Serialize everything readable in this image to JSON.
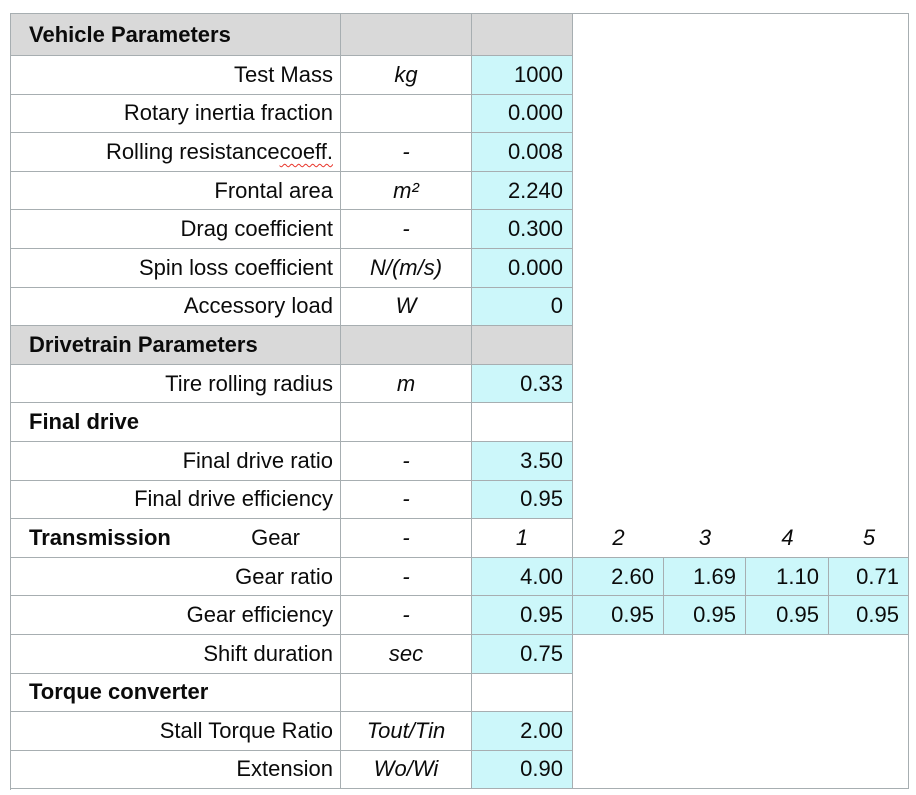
{
  "sheet_title": "Vehicle Parameters",
  "colors": {
    "section_header_bg": "#d9d9d9",
    "input_cell_bg": "#ccf7fa",
    "grid_line": "#a7aeb1",
    "spellcheck_underline": "#e8352b",
    "text": "#000000"
  },
  "table": {
    "columns": [
      "parameter",
      "unit",
      "value",
      "gear2",
      "gear3",
      "gear4",
      "gear5"
    ],
    "rows": [
      {
        "kind": "section",
        "label": "Vehicle Parameters"
      },
      {
        "kind": "data",
        "label": "Test Mass",
        "unit": "kg",
        "value": "1000",
        "fill": true
      },
      {
        "kind": "data",
        "label": "Rotary inertia fraction",
        "unit": "",
        "value": "0.000",
        "fill": true
      },
      {
        "kind": "data",
        "label": "Rolling resistance coeff.",
        "label_prefix": "Rolling resistance ",
        "label_squiggle": "coeff.",
        "unit": "-",
        "value": "0.008",
        "fill": true
      },
      {
        "kind": "data",
        "label": "Frontal area",
        "unit": "m²",
        "value": "2.240",
        "fill": true
      },
      {
        "kind": "data",
        "label": "Drag coefficient",
        "unit": "-",
        "value": "0.300",
        "fill": true
      },
      {
        "kind": "data",
        "label": "Spin loss coefficient",
        "unit": "N/(m/s)",
        "value": "0.000",
        "fill": true
      },
      {
        "kind": "data",
        "label": "Accessory load",
        "unit": "W",
        "value": "0",
        "fill": true
      },
      {
        "kind": "section",
        "label": "Drivetrain Parameters"
      },
      {
        "kind": "data",
        "label": "Tire rolling radius",
        "unit": "m",
        "value": "0.33",
        "fill": true
      },
      {
        "kind": "sub",
        "label": "Final drive"
      },
      {
        "kind": "data",
        "label": "Final drive ratio",
        "unit": "-",
        "value": "3.50",
        "fill": true
      },
      {
        "kind": "data",
        "label": "Final drive efficiency",
        "unit": "-",
        "value": "0.95",
        "fill": true
      },
      {
        "kind": "trans",
        "label_bold": "Transmission",
        "label": "Gear",
        "unit": "-",
        "value": "1",
        "gear_headers": [
          "2",
          "3",
          "4",
          "5"
        ]
      },
      {
        "kind": "data",
        "label": "Gear ratio",
        "unit": "-",
        "value": "4.00",
        "gears": [
          "2.60",
          "1.69",
          "1.10",
          "0.71"
        ],
        "fill": true
      },
      {
        "kind": "data",
        "label": "Gear efficiency",
        "unit": "-",
        "value": "0.95",
        "gears": [
          "0.95",
          "0.95",
          "0.95",
          "0.95"
        ],
        "fill": true
      },
      {
        "kind": "data",
        "label": "Shift duration",
        "unit": "sec",
        "value": "0.75",
        "fill": true
      },
      {
        "kind": "sub",
        "label": "Torque converter"
      },
      {
        "kind": "data",
        "label": "Stall Torque Ratio",
        "unit": "Tout/Tin",
        "value": "2.00",
        "fill": true
      },
      {
        "kind": "data",
        "label": "Extension",
        "unit": "Wo/Wi",
        "value": "0.90",
        "fill": true
      }
    ]
  }
}
